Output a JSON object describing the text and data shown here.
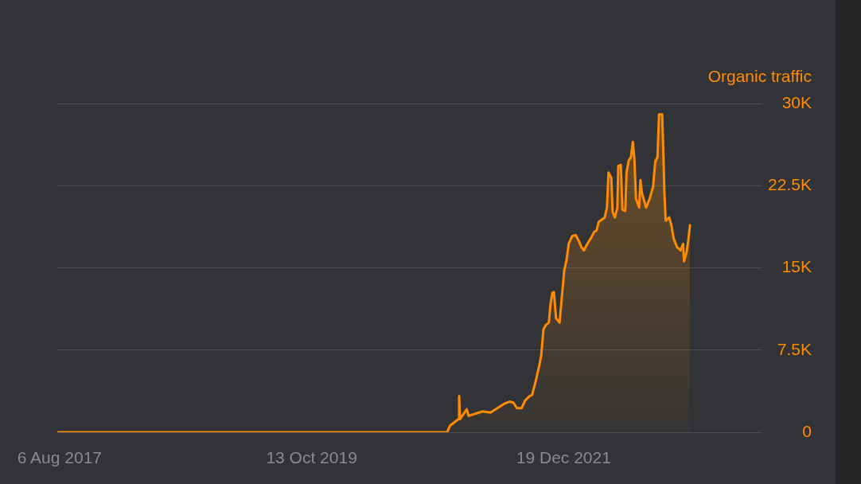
{
  "chart_data": {
    "type": "area",
    "ylabel": "Organic traffic",
    "x": [
      "2017-07-30",
      "2020-12-15",
      "2020-12-24",
      "2021-01-20",
      "2021-01-22",
      "2021-01-25",
      "2021-02-15",
      "2021-02-21",
      "2021-03-26",
      "2021-04-06",
      "2021-05-01",
      "2021-05-23",
      "2021-06-14",
      "2021-07-02",
      "2021-07-13",
      "2021-07-24",
      "2021-08-08",
      "2021-08-19",
      "2021-09-02",
      "2021-09-10",
      "2021-09-21",
      "2021-10-02",
      "2021-10-09",
      "2021-10-16",
      "2021-10-24",
      "2021-11-02",
      "2021-11-07",
      "2021-11-13",
      "2021-11-18",
      "2021-11-25",
      "2021-12-06",
      "2021-12-14",
      "2021-12-21",
      "2021-12-28",
      "2022-01-04",
      "2022-01-15",
      "2022-01-26",
      "2022-02-06",
      "2022-02-13",
      "2022-02-21",
      "2022-03-04",
      "2022-03-15",
      "2022-03-26",
      "2022-04-02",
      "2022-04-09",
      "2022-04-28",
      "2022-05-05",
      "2022-05-10",
      "2022-05-19",
      "2022-05-23",
      "2022-05-30",
      "2022-06-07",
      "2022-06-10",
      "2022-06-18",
      "2022-06-23",
      "2022-07-02",
      "2022-07-06",
      "2022-07-13",
      "2022-07-20",
      "2022-07-26",
      "2022-07-31",
      "2022-08-05",
      "2022-08-15",
      "2022-08-19",
      "2022-08-24",
      "2022-08-29",
      "2022-09-06",
      "2022-09-17",
      "2022-09-28",
      "2022-10-05",
      "2022-10-12",
      "2022-10-17",
      "2022-10-27",
      "2022-10-31",
      "2022-11-03",
      "2022-11-07",
      "2022-11-18",
      "2022-11-25",
      "2022-12-02",
      "2022-12-13",
      "2022-12-24",
      "2023-01-01",
      "2023-01-04",
      "2023-01-12",
      "2023-01-17",
      "2023-01-23"
    ],
    "series": [
      {
        "color": "#ff8c00",
        "values": [
          0,
          0,
          600,
          1200,
          3300,
          1200,
          2100,
          1500,
          1800,
          1900,
          1800,
          2200,
          2600,
          2800,
          2700,
          2200,
          2200,
          2900,
          3300,
          3400,
          4600,
          6000,
          7000,
          9400,
          9800,
          10000,
          11600,
          12700,
          12800,
          10400,
          10000,
          12600,
          14800,
          15700,
          17200,
          17900,
          18000,
          17400,
          16900,
          16600,
          17200,
          17700,
          18300,
          18400,
          19200,
          19600,
          20500,
          23700,
          23200,
          20100,
          19600,
          20500,
          24300,
          24400,
          20300,
          20200,
          23700,
          24800,
          25100,
          26500,
          24900,
          21300,
          20500,
          23000,
          21800,
          21300,
          20500,
          21300,
          22400,
          24700,
          25100,
          29000,
          29000,
          25100,
          21800,
          19300,
          19600,
          18900,
          17700,
          16900,
          16600,
          17200,
          15600,
          16400,
          17400,
          18900
        ]
      }
    ],
    "xlim": [
      "2017-07-30",
      "2023-09-09"
    ],
    "xticks": [
      {
        "value": "2017-08-06",
        "label": "6 Aug 2017"
      },
      {
        "value": "2019-10-13",
        "label": "13 Oct 2019"
      },
      {
        "value": "2021-12-19",
        "label": "19 Dec 2021"
      }
    ],
    "ylim": [
      0,
      30000
    ],
    "yticks": [
      0,
      {
        "value": 7500,
        "label": "7.5K"
      },
      {
        "value": 15000,
        "label": "15K"
      },
      {
        "value": 22500,
        "label": "22.5K"
      },
      {
        "value": 30000,
        "label": "30K"
      }
    ],
    "grid": "y"
  }
}
